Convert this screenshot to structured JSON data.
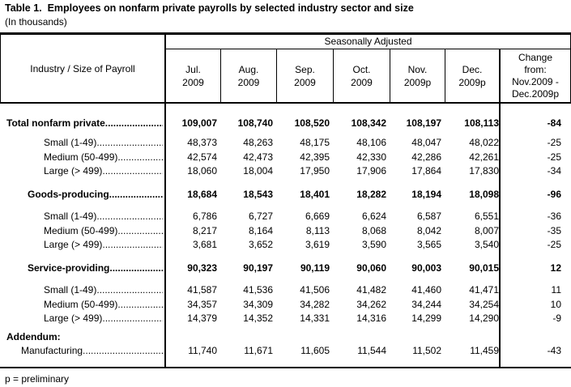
{
  "title": "Table 1.  Employees on nonfarm private payrolls by selected industry sector and size",
  "subtitle": "(In thousands)",
  "table": {
    "stub_header": "Industry / Size of Payroll",
    "group_header": "Seasonally Adjusted",
    "columns": [
      {
        "month": "Jul.",
        "year": "2009"
      },
      {
        "month": "Aug.",
        "year": "2009"
      },
      {
        "month": "Sep.",
        "year": "2009"
      },
      {
        "month": "Oct.",
        "year": "2009"
      },
      {
        "month": "Nov.",
        "year": "2009p"
      },
      {
        "month": "Dec.",
        "year": "2009p"
      }
    ],
    "change_header_lines": [
      "Change",
      "from:",
      "Nov.2009 -",
      "Dec.2009p"
    ],
    "rows": [
      {
        "type": "total",
        "label": "Total nonfarm private",
        "values": [
          "109,007",
          "108,740",
          "108,520",
          "108,342",
          "108,197",
          "108,113"
        ],
        "change": "-84"
      },
      {
        "type": "size",
        "label": "Small (1-49)",
        "values": [
          "48,373",
          "48,263",
          "48,175",
          "48,106",
          "48,047",
          "48,022"
        ],
        "change": "-25"
      },
      {
        "type": "size",
        "label": "Medium (50-499)",
        "values": [
          "42,574",
          "42,473",
          "42,395",
          "42,330",
          "42,286",
          "42,261"
        ],
        "change": "-25"
      },
      {
        "type": "size",
        "label": "Large (> 499)",
        "values": [
          "18,060",
          "18,004",
          "17,950",
          "17,906",
          "17,864",
          "17,830"
        ],
        "change": "-34"
      },
      {
        "type": "section",
        "label": "Goods-producing",
        "values": [
          "18,684",
          "18,543",
          "18,401",
          "18,282",
          "18,194",
          "18,098"
        ],
        "change": "-96"
      },
      {
        "type": "size",
        "label": "Small (1-49)",
        "values": [
          "6,786",
          "6,727",
          "6,669",
          "6,624",
          "6,587",
          "6,551"
        ],
        "change": "-36"
      },
      {
        "type": "size",
        "label": "Medium (50-499)",
        "values": [
          "8,217",
          "8,164",
          "8,113",
          "8,068",
          "8,042",
          "8,007"
        ],
        "change": "-35"
      },
      {
        "type": "size",
        "label": "Large (> 499)",
        "values": [
          "3,681",
          "3,652",
          "3,619",
          "3,590",
          "3,565",
          "3,540"
        ],
        "change": "-25"
      },
      {
        "type": "section",
        "label": "Service-providing",
        "values": [
          "90,323",
          "90,197",
          "90,119",
          "90,060",
          "90,003",
          "90,015"
        ],
        "change": "12"
      },
      {
        "type": "size",
        "label": "Small (1-49)",
        "values": [
          "41,587",
          "41,536",
          "41,506",
          "41,482",
          "41,460",
          "41,471"
        ],
        "change": "11"
      },
      {
        "type": "size",
        "label": "Medium (50-499)",
        "values": [
          "34,357",
          "34,309",
          "34,282",
          "34,262",
          "34,244",
          "34,254"
        ],
        "change": "10"
      },
      {
        "type": "size",
        "label": "Large (> 499)",
        "values": [
          "14,379",
          "14,352",
          "14,331",
          "14,316",
          "14,299",
          "14,290"
        ],
        "change": "-9"
      },
      {
        "type": "addendum-label",
        "label": "Addendum:",
        "values": [
          "",
          "",
          "",
          "",
          "",
          ""
        ],
        "change": ""
      },
      {
        "type": "addendum-item",
        "label": "Manufacturing",
        "values": [
          "11,740",
          "11,671",
          "11,605",
          "11,544",
          "11,502",
          "11,459"
        ],
        "change": "-43"
      }
    ]
  },
  "footnote": "p = preliminary"
}
